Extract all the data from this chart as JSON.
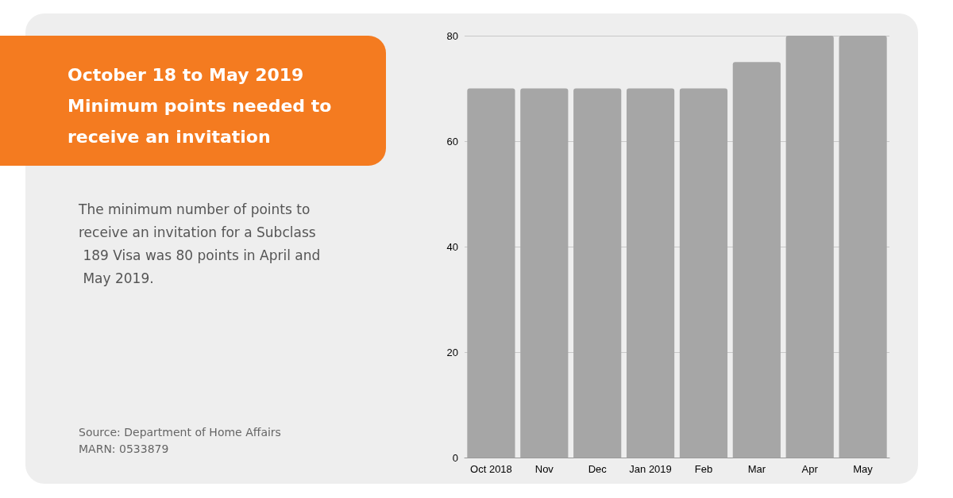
{
  "chart_data": {
    "type": "bar",
    "title": "October 18 to May 2019 Minimum points needed to receive an invitation",
    "subtitle": "The minimum number of points to receive an invitation for a Subclass 189 Visa was 80 points in April and May 2019.",
    "annotations": [
      "Source: Department of Home Affairs",
      "MARN: 0533879"
    ],
    "categories": [
      "Oct 2018",
      "Nov",
      "Dec",
      "Jan 2019",
      "Feb",
      "Mar",
      "Apr",
      "May"
    ],
    "values": [
      70,
      70,
      70,
      70,
      70,
      75,
      80,
      80
    ],
    "color": "#a6a6a6",
    "ylim": [
      0,
      80
    ],
    "yticks": [
      0,
      20,
      40,
      60,
      80
    ],
    "grid": "y"
  }
}
